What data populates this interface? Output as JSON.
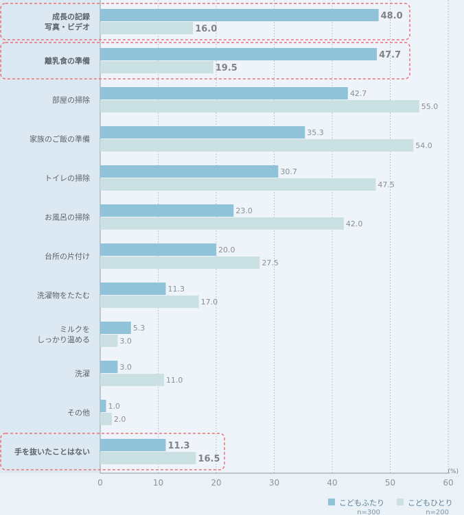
{
  "chart_data": {
    "type": "bar",
    "orientation": "horizontal",
    "categories": [
      [
        "成長の記録",
        "写真・ビデオ"
      ],
      [
        "離乳食の準備"
      ],
      [
        "部屋の掃除"
      ],
      [
        "家族のご飯の準備"
      ],
      [
        "トイレの掃除"
      ],
      [
        "お風呂の掃除"
      ],
      [
        "台所の片付け"
      ],
      [
        "洗濯物をたたむ"
      ],
      [
        "ミルクを",
        "しっかり温める"
      ],
      [
        "洗濯"
      ],
      [
        "その他"
      ],
      [
        "手を抜いたことはない"
      ]
    ],
    "series": [
      {
        "name": "こどもふたり",
        "n_label": "n=300",
        "color": "#90c3da",
        "values": [
          48.0,
          47.7,
          42.7,
          35.3,
          30.7,
          23.0,
          20.0,
          11.3,
          5.3,
          3.0,
          1.0,
          11.3
        ]
      },
      {
        "name": "こどもひとり",
        "n_label": "n=200",
        "color": "#cbe0e3",
        "values": [
          16.0,
          19.5,
          55.0,
          54.0,
          47.5,
          42.0,
          27.5,
          17.0,
          3.0,
          11.0,
          2.0,
          16.5
        ]
      }
    ],
    "highlighted_categories": [
      0,
      1,
      11
    ],
    "highlight_color": "#e8707a",
    "xlim": [
      0,
      60
    ],
    "xticks": [
      0,
      10,
      20,
      30,
      40,
      50,
      60
    ],
    "unit_label": "(%)",
    "grid": true,
    "legend_position": "bottom-right"
  }
}
